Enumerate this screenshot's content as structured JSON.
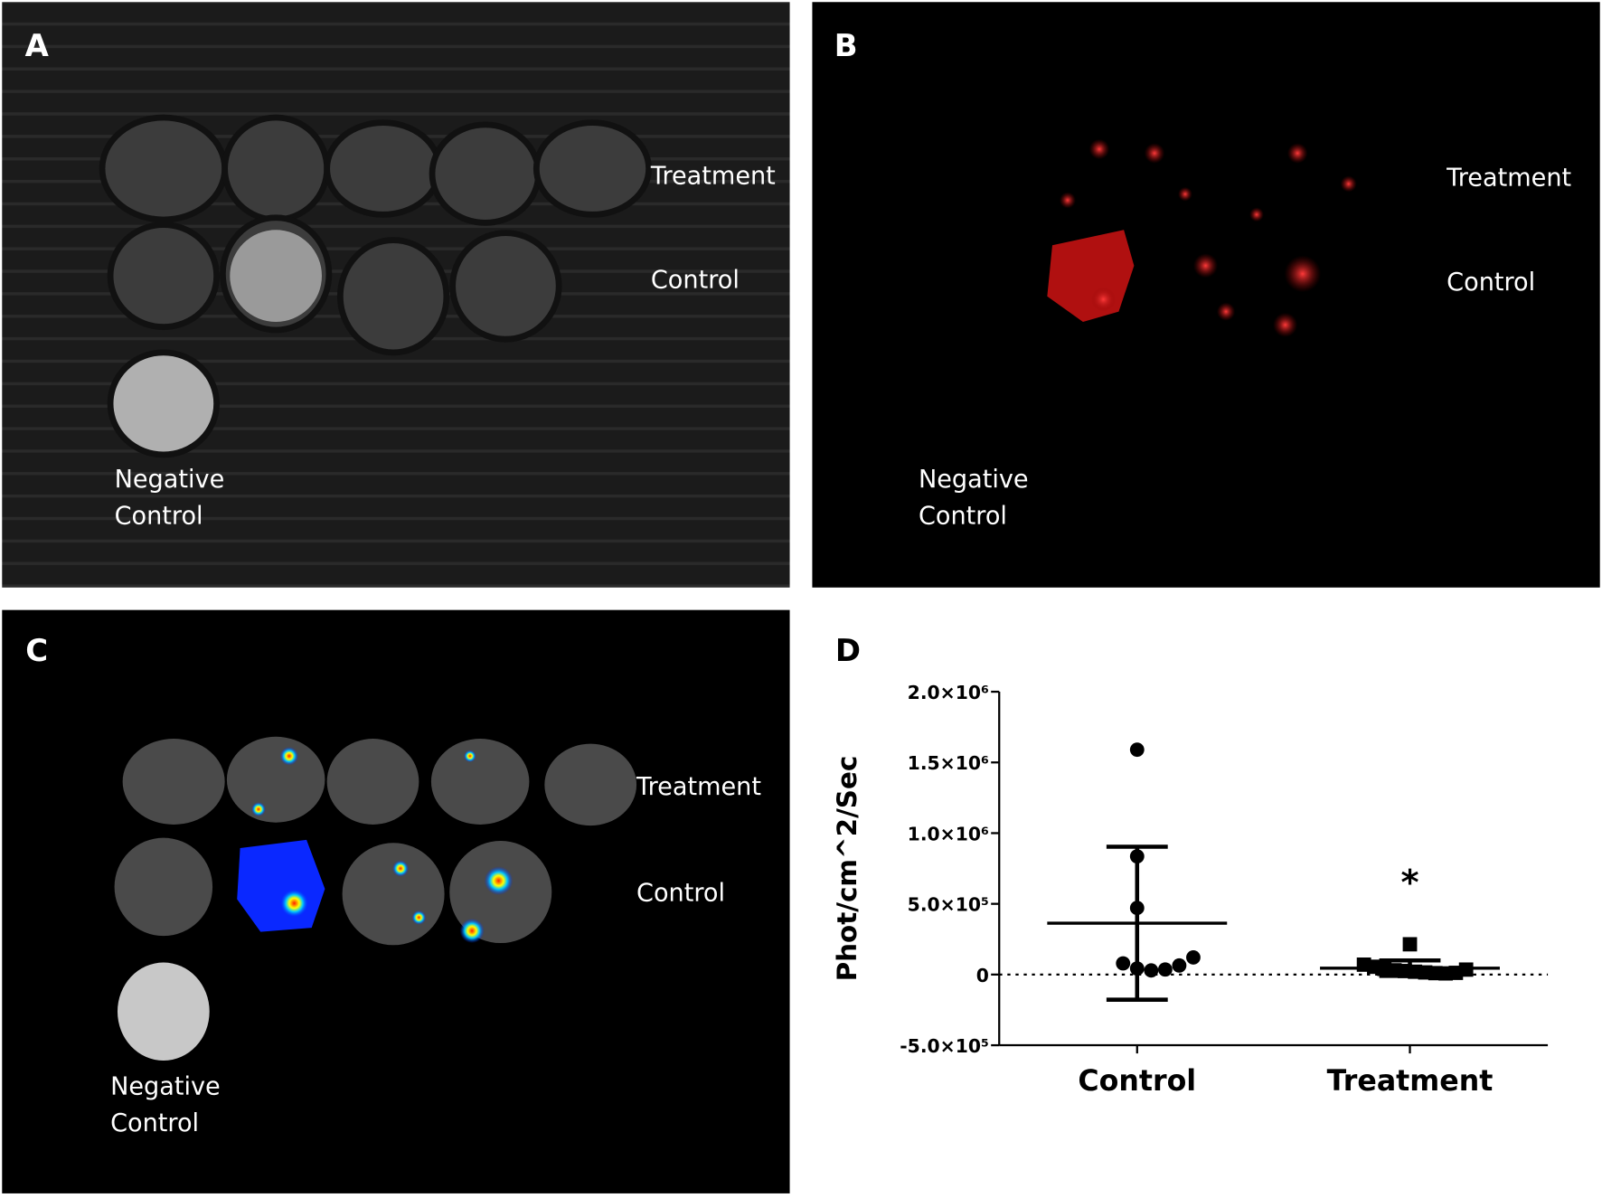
{
  "panels": [
    {
      "label": "A",
      "row_labels": [
        "Treatment",
        "Control"
      ],
      "negative_label": [
        "Negative",
        "Control"
      ]
    },
    {
      "label": "B",
      "row_labels": [
        "Treatment",
        "Control"
      ],
      "negative_label": [
        "Negative",
        "Control"
      ]
    },
    {
      "label": "C",
      "row_labels": [
        "Treatment",
        "Control"
      ],
      "negative_label": [
        "Negative",
        "Control"
      ]
    }
  ],
  "chart_data": {
    "type": "scatter",
    "label": "D",
    "y_label": "Phot/cm^2/Sec",
    "categories": [
      "Control",
      "Treatment"
    ],
    "markers": [
      "circle",
      "square"
    ],
    "points": [
      [
        1590000,
        836000,
        471000,
        79000,
        43000,
        29000,
        36000,
        64000,
        121000
      ],
      [
        214000,
        70000,
        55000,
        40000,
        30000,
        25000,
        20000,
        15000,
        10000,
        8000,
        12000,
        35000
      ]
    ],
    "means": [
      363000,
      45000
    ],
    "errors": [
      541000,
      55000
    ],
    "annotation": "*",
    "ylim": [
      -500000,
      2000000
    ],
    "yticks": [
      {
        "value": 2000000,
        "label": "2.0×10⁶"
      },
      {
        "value": 1500000,
        "label": "1.5×10⁶"
      },
      {
        "value": 1000000,
        "label": "1.0×10⁶"
      },
      {
        "value": 500000,
        "label": "5.0×10⁵"
      },
      0,
      {
        "value": -500000,
        "label": "-5.0×10⁵"
      }
    ],
    "zero_line": true
  }
}
